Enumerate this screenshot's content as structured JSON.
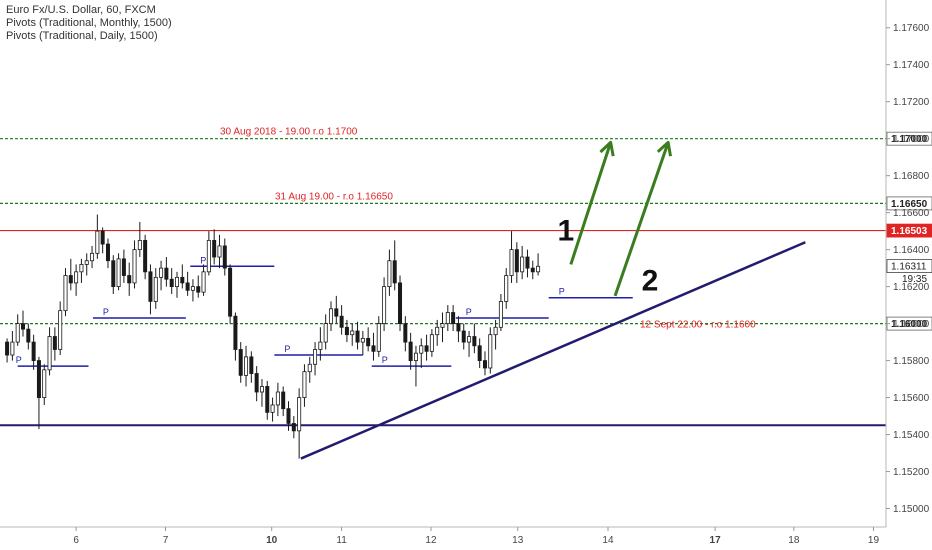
{
  "legend": {
    "symbol": "Euro Fx/U.S. Dollar, 60, FXCM",
    "indicator1": "Pivots (Traditional, Monthly, 1500)",
    "indicator2": "Pivots (Traditional, Daily, 1500)"
  },
  "colors": {
    "up_candle": "#ffffff",
    "candle_border": "#1a1a1a",
    "horizontal_green": "#1b7a1b",
    "resistance_red": "#e02424",
    "pivot_blue": "#1f1fa8",
    "trendline": "#231c6e",
    "arrow_green": "#3a7d1e",
    "annotation_red": "#e02424",
    "price_badge_red": "#e02424",
    "price_badge_text": "#ffffff"
  },
  "chart_data": {
    "type": "candlestick",
    "symbol": "Euro Fx/U.S. Dollar",
    "timeframe": "60",
    "source": "FXCM",
    "x_tick_labels": [
      "6",
      "7",
      "10",
      "11",
      "12",
      "13",
      "14",
      "17",
      "18",
      "19"
    ],
    "y_tick_labels": [
      "1.17600",
      "1.17400",
      "1.17200",
      "1.17000",
      "1.16800",
      "1.16600",
      "1.16400",
      "1.16200",
      "1.16000",
      "1.15800",
      "1.15600",
      "1.15400",
      "1.15200",
      "1.15000"
    ],
    "ylim": [
      1.149,
      1.1775
    ],
    "current_price": "1.16311",
    "countdown": "19:35",
    "horizontal_lines": [
      {
        "name": "level-11700",
        "price": 1.17,
        "style": "dashed",
        "color": "#1b7a1b",
        "label": "1.17000",
        "annotation": "30 Aug 2018 - 19.00 r.o 1.1700"
      },
      {
        "name": "level-11665",
        "price": 1.1665,
        "style": "dashed",
        "color": "#1b7a1b",
        "label": "1.16650",
        "annotation": "31 Aug 19.00 - r.o 1.16650"
      },
      {
        "name": "level-116503",
        "price": 1.16503,
        "style": "solid",
        "color": "#e02424",
        "label": "1.16503",
        "annotation": ""
      },
      {
        "name": "level-11600",
        "price": 1.16,
        "style": "dashed",
        "color": "#1b7a1b",
        "label": "1.16000",
        "annotation": "12 Sept 22.00 - r.o 1.1600"
      },
      {
        "name": "level-11545",
        "price": 1.1545,
        "style": "solid",
        "color": "#231c6e",
        "label": "",
        "annotation": ""
      }
    ],
    "pivot_segments": [
      {
        "price": 1.1577,
        "x0": 0.2,
        "x1": 1.0,
        "label": "P"
      },
      {
        "price": 1.1603,
        "x0": 1.05,
        "x1": 2.1,
        "label": "P"
      },
      {
        "price": 1.1631,
        "x0": 2.15,
        "x1": 3.1,
        "label": "P"
      },
      {
        "price": 1.1583,
        "x0": 3.1,
        "x1": 4.1,
        "label": "P"
      },
      {
        "price": 1.1577,
        "x0": 4.2,
        "x1": 5.1,
        "label": "P"
      },
      {
        "price": 1.1603,
        "x0": 5.15,
        "x1": 6.2,
        "label": "P"
      },
      {
        "price": 1.1614,
        "x0": 6.2,
        "x1": 7.15,
        "label": "P"
      }
    ],
    "trendline": {
      "from": [
        3.4,
        1.1527
      ],
      "to": [
        9.1,
        1.1644
      ]
    },
    "arrows": [
      {
        "from": [
          6.45,
          1.1632
        ],
        "to": [
          6.9,
          1.1698
        ],
        "label": "1",
        "label_at": [
          6.3,
          1.1645
        ]
      },
      {
        "from": [
          6.95,
          1.1615
        ],
        "to": [
          7.55,
          1.1698
        ],
        "label": "2",
        "label_at": [
          7.25,
          1.1618
        ]
      }
    ],
    "candles": [
      {
        "x": 0.08,
        "o": 1.159,
        "h": 1.1592,
        "l": 1.1579,
        "c": 1.1583
      },
      {
        "x": 0.14,
        "o": 1.1583,
        "h": 1.1596,
        "l": 1.158,
        "c": 1.159
      },
      {
        "x": 0.2,
        "o": 1.159,
        "h": 1.1605,
        "l": 1.1588,
        "c": 1.16
      },
      {
        "x": 0.26,
        "o": 1.16,
        "h": 1.1607,
        "l": 1.1593,
        "c": 1.1597
      },
      {
        "x": 0.32,
        "o": 1.1597,
        "h": 1.16,
        "l": 1.1586,
        "c": 1.159
      },
      {
        "x": 0.38,
        "o": 1.159,
        "h": 1.1594,
        "l": 1.1575,
        "c": 1.158
      },
      {
        "x": 0.44,
        "o": 1.158,
        "h": 1.1582,
        "l": 1.1543,
        "c": 1.156
      },
      {
        "x": 0.5,
        "o": 1.156,
        "h": 1.1578,
        "l": 1.1556,
        "c": 1.1575
      },
      {
        "x": 0.56,
        "o": 1.1575,
        "h": 1.1598,
        "l": 1.1572,
        "c": 1.1593
      },
      {
        "x": 0.62,
        "o": 1.1593,
        "h": 1.1598,
        "l": 1.158,
        "c": 1.1586
      },
      {
        "x": 0.68,
        "o": 1.1586,
        "h": 1.1612,
        "l": 1.1583,
        "c": 1.1607
      },
      {
        "x": 0.74,
        "o": 1.1607,
        "h": 1.163,
        "l": 1.1604,
        "c": 1.1626
      },
      {
        "x": 0.8,
        "o": 1.1626,
        "h": 1.1635,
        "l": 1.1618,
        "c": 1.1622
      },
      {
        "x": 0.86,
        "o": 1.1622,
        "h": 1.1632,
        "l": 1.1615,
        "c": 1.1628
      },
      {
        "x": 0.92,
        "o": 1.1628,
        "h": 1.1635,
        "l": 1.1622,
        "c": 1.1632
      },
      {
        "x": 0.98,
        "o": 1.1632,
        "h": 1.1638,
        "l": 1.1626,
        "c": 1.1634
      },
      {
        "x": 1.04,
        "o": 1.1634,
        "h": 1.1642,
        "l": 1.163,
        "c": 1.1638
      },
      {
        "x": 1.1,
        "o": 1.1638,
        "h": 1.1659,
        "l": 1.1635,
        "c": 1.165
      },
      {
        "x": 1.16,
        "o": 1.165,
        "h": 1.1652,
        "l": 1.1638,
        "c": 1.1643
      },
      {
        "x": 1.22,
        "o": 1.1643,
        "h": 1.1646,
        "l": 1.163,
        "c": 1.1634
      },
      {
        "x": 1.28,
        "o": 1.1634,
        "h": 1.1637,
        "l": 1.1616,
        "c": 1.162
      },
      {
        "x": 1.34,
        "o": 1.162,
        "h": 1.1638,
        "l": 1.1618,
        "c": 1.1635
      },
      {
        "x": 1.4,
        "o": 1.1635,
        "h": 1.164,
        "l": 1.1622,
        "c": 1.1626
      },
      {
        "x": 1.46,
        "o": 1.1626,
        "h": 1.1633,
        "l": 1.1615,
        "c": 1.1622
      },
      {
        "x": 1.52,
        "o": 1.1622,
        "h": 1.1645,
        "l": 1.1619,
        "c": 1.164
      },
      {
        "x": 1.58,
        "o": 1.164,
        "h": 1.1655,
        "l": 1.1636,
        "c": 1.1645
      },
      {
        "x": 1.64,
        "o": 1.1645,
        "h": 1.1648,
        "l": 1.1624,
        "c": 1.1628
      },
      {
        "x": 1.7,
        "o": 1.1628,
        "h": 1.1632,
        "l": 1.1605,
        "c": 1.1612
      },
      {
        "x": 1.76,
        "o": 1.1612,
        "h": 1.163,
        "l": 1.1608,
        "c": 1.1625
      },
      {
        "x": 1.82,
        "o": 1.1625,
        "h": 1.1634,
        "l": 1.1618,
        "c": 1.163
      },
      {
        "x": 1.88,
        "o": 1.163,
        "h": 1.1636,
        "l": 1.162,
        "c": 1.1624
      },
      {
        "x": 1.94,
        "o": 1.1624,
        "h": 1.163,
        "l": 1.1616,
        "c": 1.162
      },
      {
        "x": 2.0,
        "o": 1.162,
        "h": 1.1628,
        "l": 1.1614,
        "c": 1.1625
      },
      {
        "x": 2.06,
        "o": 1.1625,
        "h": 1.1632,
        "l": 1.1619,
        "c": 1.1622
      },
      {
        "x": 2.12,
        "o": 1.1622,
        "h": 1.1628,
        "l": 1.1615,
        "c": 1.1618
      },
      {
        "x": 2.18,
        "o": 1.1618,
        "h": 1.1624,
        "l": 1.1612,
        "c": 1.162
      },
      {
        "x": 2.24,
        "o": 1.162,
        "h": 1.1626,
        "l": 1.1614,
        "c": 1.1617
      },
      {
        "x": 2.3,
        "o": 1.1617,
        "h": 1.1632,
        "l": 1.1615,
        "c": 1.1628
      },
      {
        "x": 2.36,
        "o": 1.1628,
        "h": 1.165,
        "l": 1.1626,
        "c": 1.1645
      },
      {
        "x": 2.42,
        "o": 1.1645,
        "h": 1.1651,
        "l": 1.1632,
        "c": 1.1636
      },
      {
        "x": 2.48,
        "o": 1.1636,
        "h": 1.1648,
        "l": 1.163,
        "c": 1.1642
      },
      {
        "x": 2.54,
        "o": 1.1642,
        "h": 1.1646,
        "l": 1.1626,
        "c": 1.163
      },
      {
        "x": 2.6,
        "o": 1.163,
        "h": 1.1632,
        "l": 1.16,
        "c": 1.1604
      },
      {
        "x": 2.66,
        "o": 1.1604,
        "h": 1.1606,
        "l": 1.158,
        "c": 1.1586
      },
      {
        "x": 2.72,
        "o": 1.1586,
        "h": 1.159,
        "l": 1.1568,
        "c": 1.1572
      },
      {
        "x": 2.78,
        "o": 1.1572,
        "h": 1.1588,
        "l": 1.1566,
        "c": 1.1582
      },
      {
        "x": 2.84,
        "o": 1.1582,
        "h": 1.1585,
        "l": 1.1568,
        "c": 1.1573
      },
      {
        "x": 2.9,
        "o": 1.1573,
        "h": 1.1577,
        "l": 1.1558,
        "c": 1.1563
      },
      {
        "x": 2.96,
        "o": 1.1563,
        "h": 1.157,
        "l": 1.1555,
        "c": 1.1566
      },
      {
        "x": 3.02,
        "o": 1.1566,
        "h": 1.1569,
        "l": 1.1548,
        "c": 1.1552
      },
      {
        "x": 3.08,
        "o": 1.1552,
        "h": 1.156,
        "l": 1.1547,
        "c": 1.1556
      },
      {
        "x": 3.14,
        "o": 1.1556,
        "h": 1.1568,
        "l": 1.155,
        "c": 1.1563
      },
      {
        "x": 3.2,
        "o": 1.1563,
        "h": 1.1566,
        "l": 1.155,
        "c": 1.1554
      },
      {
        "x": 3.26,
        "o": 1.1554,
        "h": 1.1558,
        "l": 1.1542,
        "c": 1.1546
      },
      {
        "x": 3.32,
        "o": 1.1546,
        "h": 1.155,
        "l": 1.1538,
        "c": 1.1542
      },
      {
        "x": 3.38,
        "o": 1.1542,
        "h": 1.1565,
        "l": 1.1527,
        "c": 1.156
      },
      {
        "x": 3.44,
        "o": 1.156,
        "h": 1.1578,
        "l": 1.1555,
        "c": 1.1574
      },
      {
        "x": 3.5,
        "o": 1.1574,
        "h": 1.1582,
        "l": 1.1568,
        "c": 1.1578
      },
      {
        "x": 3.56,
        "o": 1.1578,
        "h": 1.159,
        "l": 1.1572,
        "c": 1.1586
      },
      {
        "x": 3.62,
        "o": 1.1586,
        "h": 1.1598,
        "l": 1.158,
        "c": 1.159
      },
      {
        "x": 3.68,
        "o": 1.159,
        "h": 1.1605,
        "l": 1.1586,
        "c": 1.16
      },
      {
        "x": 3.74,
        "o": 1.16,
        "h": 1.1612,
        "l": 1.1596,
        "c": 1.1608
      },
      {
        "x": 3.8,
        "o": 1.1608,
        "h": 1.1615,
        "l": 1.16,
        "c": 1.1604
      },
      {
        "x": 3.86,
        "o": 1.1604,
        "h": 1.161,
        "l": 1.1594,
        "c": 1.1598
      },
      {
        "x": 3.92,
        "o": 1.1598,
        "h": 1.1602,
        "l": 1.159,
        "c": 1.1594
      },
      {
        "x": 3.98,
        "o": 1.1594,
        "h": 1.16,
        "l": 1.1588,
        "c": 1.1596
      },
      {
        "x": 4.04,
        "o": 1.1596,
        "h": 1.1601,
        "l": 1.1586,
        "c": 1.159
      },
      {
        "x": 4.1,
        "o": 1.159,
        "h": 1.1596,
        "l": 1.1583,
        "c": 1.1592
      },
      {
        "x": 4.16,
        "o": 1.1592,
        "h": 1.1598,
        "l": 1.1585,
        "c": 1.1588
      },
      {
        "x": 4.22,
        "o": 1.1588,
        "h": 1.1595,
        "l": 1.158,
        "c": 1.1585
      },
      {
        "x": 4.28,
        "o": 1.1585,
        "h": 1.1604,
        "l": 1.1582,
        "c": 1.16
      },
      {
        "x": 4.34,
        "o": 1.16,
        "h": 1.1625,
        "l": 1.1596,
        "c": 1.162
      },
      {
        "x": 4.4,
        "o": 1.162,
        "h": 1.164,
        "l": 1.1615,
        "c": 1.1634
      },
      {
        "x": 4.46,
        "o": 1.1634,
        "h": 1.1645,
        "l": 1.1618,
        "c": 1.1622
      },
      {
        "x": 4.52,
        "o": 1.1622,
        "h": 1.1626,
        "l": 1.1596,
        "c": 1.16
      },
      {
        "x": 4.58,
        "o": 1.16,
        "h": 1.1604,
        "l": 1.1585,
        "c": 1.159
      },
      {
        "x": 4.64,
        "o": 1.159,
        "h": 1.1595,
        "l": 1.1575,
        "c": 1.158
      },
      {
        "x": 4.7,
        "o": 1.158,
        "h": 1.1588,
        "l": 1.1566,
        "c": 1.1584
      },
      {
        "x": 4.76,
        "o": 1.1584,
        "h": 1.1592,
        "l": 1.1576,
        "c": 1.1588
      },
      {
        "x": 4.82,
        "o": 1.1588,
        "h": 1.1594,
        "l": 1.158,
        "c": 1.1585
      },
      {
        "x": 4.88,
        "o": 1.1585,
        "h": 1.1597,
        "l": 1.1582,
        "c": 1.1594
      },
      {
        "x": 4.94,
        "o": 1.1594,
        "h": 1.1602,
        "l": 1.1588,
        "c": 1.1598
      },
      {
        "x": 5.0,
        "o": 1.1598,
        "h": 1.1606,
        "l": 1.159,
        "c": 1.16
      },
      {
        "x": 5.06,
        "o": 1.16,
        "h": 1.161,
        "l": 1.1596,
        "c": 1.1606
      },
      {
        "x": 5.12,
        "o": 1.1606,
        "h": 1.161,
        "l": 1.1596,
        "c": 1.16
      },
      {
        "x": 5.18,
        "o": 1.16,
        "h": 1.1604,
        "l": 1.159,
        "c": 1.1596
      },
      {
        "x": 5.24,
        "o": 1.1596,
        "h": 1.16,
        "l": 1.1586,
        "c": 1.159
      },
      {
        "x": 5.3,
        "o": 1.159,
        "h": 1.1596,
        "l": 1.1582,
        "c": 1.1593
      },
      {
        "x": 5.36,
        "o": 1.1593,
        "h": 1.16,
        "l": 1.1584,
        "c": 1.1588
      },
      {
        "x": 5.42,
        "o": 1.1588,
        "h": 1.1592,
        "l": 1.1576,
        "c": 1.158
      },
      {
        "x": 5.48,
        "o": 1.158,
        "h": 1.1585,
        "l": 1.1572,
        "c": 1.1576
      },
      {
        "x": 5.54,
        "o": 1.1576,
        "h": 1.1598,
        "l": 1.1573,
        "c": 1.1594
      },
      {
        "x": 5.6,
        "o": 1.1594,
        "h": 1.1602,
        "l": 1.1586,
        "c": 1.1598
      },
      {
        "x": 5.66,
        "o": 1.1598,
        "h": 1.1616,
        "l": 1.1596,
        "c": 1.1612
      },
      {
        "x": 5.72,
        "o": 1.1612,
        "h": 1.163,
        "l": 1.1608,
        "c": 1.1626
      },
      {
        "x": 5.78,
        "o": 1.1626,
        "h": 1.165,
        "l": 1.1622,
        "c": 1.164
      },
      {
        "x": 5.84,
        "o": 1.164,
        "h": 1.1644,
        "l": 1.1622,
        "c": 1.1628
      },
      {
        "x": 5.9,
        "o": 1.1628,
        "h": 1.1642,
        "l": 1.1624,
        "c": 1.1636
      },
      {
        "x": 5.96,
        "o": 1.1636,
        "h": 1.164,
        "l": 1.1625,
        "c": 1.163
      },
      {
        "x": 6.02,
        "o": 1.163,
        "h": 1.1634,
        "l": 1.1624,
        "c": 1.1628
      },
      {
        "x": 6.08,
        "o": 1.1628,
        "h": 1.1638,
        "l": 1.1626,
        "c": 1.1631
      }
    ]
  }
}
